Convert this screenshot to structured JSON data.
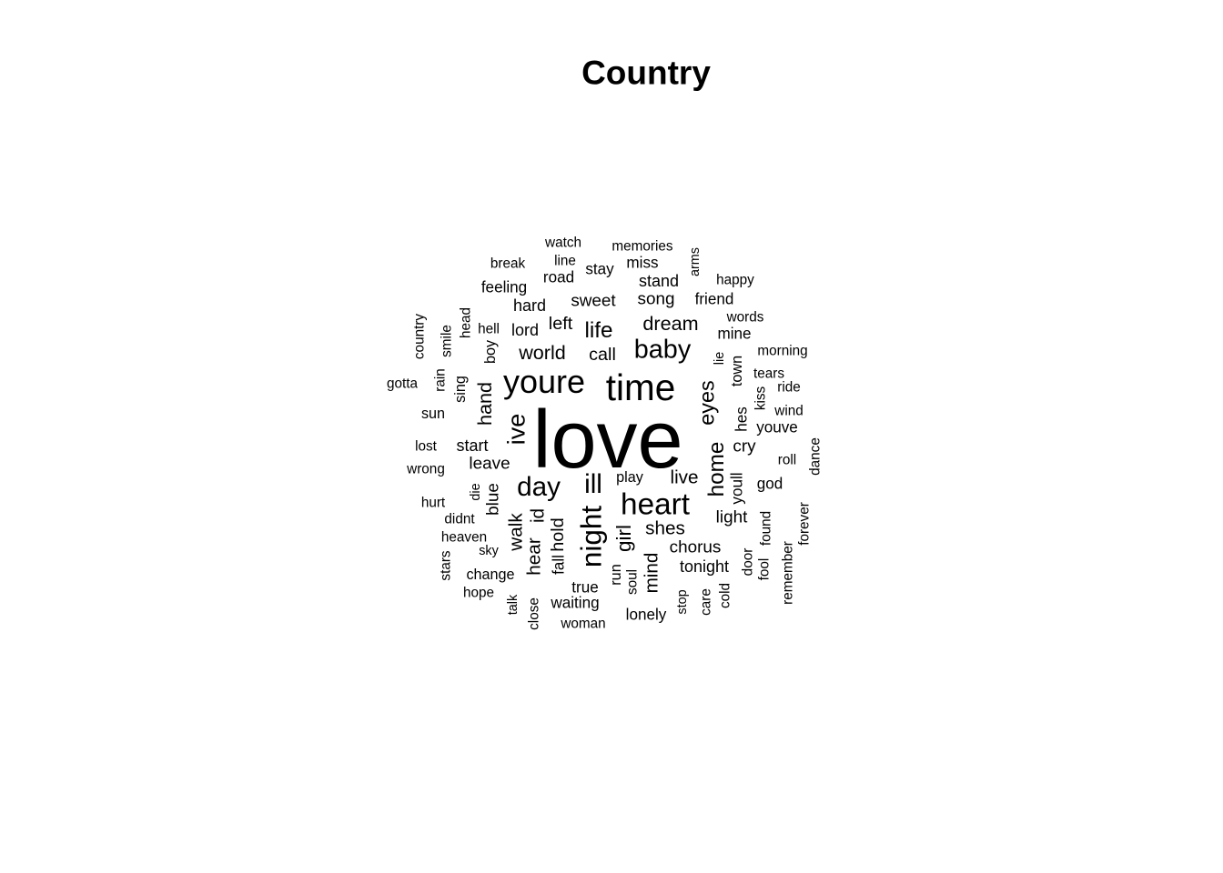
{
  "title": "Country",
  "words": [
    {
      "text": "love",
      "weight": 100
    },
    {
      "text": "time",
      "weight": 45
    },
    {
      "text": "youre",
      "weight": 40
    },
    {
      "text": "heart",
      "weight": 37
    },
    {
      "text": "night",
      "weight": 35
    },
    {
      "text": "day",
      "weight": 33
    },
    {
      "text": "ill",
      "weight": 33
    },
    {
      "text": "ive",
      "weight": 30
    },
    {
      "text": "baby",
      "weight": 32
    },
    {
      "text": "home",
      "weight": 27
    },
    {
      "text": "eyes",
      "weight": 26
    },
    {
      "text": "life",
      "weight": 27
    },
    {
      "text": "girl",
      "weight": 25
    },
    {
      "text": "world",
      "weight": 24
    },
    {
      "text": "dream",
      "weight": 24
    },
    {
      "text": "hand",
      "weight": 24
    },
    {
      "text": "live",
      "weight": 23
    },
    {
      "text": "shes",
      "weight": 23
    },
    {
      "text": "walk",
      "weight": 23
    },
    {
      "text": "mind",
      "weight": 23
    },
    {
      "text": "hear",
      "weight": 23
    },
    {
      "text": "id",
      "weight": 23
    },
    {
      "text": "hold",
      "weight": 22
    },
    {
      "text": "call",
      "weight": 22
    },
    {
      "text": "left",
      "weight": 22
    },
    {
      "text": "chorus",
      "weight": 21
    },
    {
      "text": "sweet",
      "weight": 21
    },
    {
      "text": "song",
      "weight": 21
    },
    {
      "text": "leave",
      "weight": 21
    },
    {
      "text": "cry",
      "weight": 21
    },
    {
      "text": "blue",
      "weight": 21
    },
    {
      "text": "light",
      "weight": 21
    },
    {
      "text": "tonight",
      "weight": 20
    },
    {
      "text": "start",
      "weight": 20
    },
    {
      "text": "stand",
      "weight": 20
    },
    {
      "text": "lord",
      "weight": 20
    },
    {
      "text": "hard",
      "weight": 20
    },
    {
      "text": "road",
      "weight": 19
    },
    {
      "text": "feeling",
      "weight": 19
    },
    {
      "text": "friend",
      "weight": 19
    },
    {
      "text": "fall",
      "weight": 19
    },
    {
      "text": "true",
      "weight": 19
    },
    {
      "text": "youll",
      "weight": 19
    },
    {
      "text": "waiting",
      "weight": 19
    },
    {
      "text": "lonely",
      "weight": 19
    },
    {
      "text": "mine",
      "weight": 19
    },
    {
      "text": "stay",
      "weight": 19
    },
    {
      "text": "miss",
      "weight": 19
    },
    {
      "text": "god",
      "weight": 19
    },
    {
      "text": "youve",
      "weight": 19
    },
    {
      "text": "hes",
      "weight": 19
    },
    {
      "text": "town",
      "weight": 18
    },
    {
      "text": "sing",
      "weight": 18
    },
    {
      "text": "boy",
      "weight": 18
    },
    {
      "text": "play",
      "weight": 18
    },
    {
      "text": "run",
      "weight": 18
    },
    {
      "text": "sun",
      "weight": 18
    },
    {
      "text": "change",
      "weight": 18
    },
    {
      "text": "memories",
      "weight": 17
    },
    {
      "text": "watch",
      "weight": 17
    },
    {
      "text": "line",
      "weight": 17
    },
    {
      "text": "break",
      "weight": 17
    },
    {
      "text": "happy",
      "weight": 17
    },
    {
      "text": "words",
      "weight": 17
    },
    {
      "text": "morning",
      "weight": 17
    },
    {
      "text": "tears",
      "weight": 17
    },
    {
      "text": "ride",
      "weight": 17
    },
    {
      "text": "wind",
      "weight": 17
    },
    {
      "text": "kiss",
      "weight": 17
    },
    {
      "text": "roll",
      "weight": 17
    },
    {
      "text": "dance",
      "weight": 17
    },
    {
      "text": "door",
      "weight": 17
    },
    {
      "text": "fool",
      "weight": 17
    },
    {
      "text": "found",
      "weight": 17
    },
    {
      "text": "forever",
      "weight": 17
    },
    {
      "text": "remember",
      "weight": 17
    },
    {
      "text": "care",
      "weight": 17
    },
    {
      "text": "cold",
      "weight": 17
    },
    {
      "text": "stop",
      "weight": 16
    },
    {
      "text": "soul",
      "weight": 17
    },
    {
      "text": "woman",
      "weight": 17
    },
    {
      "text": "close",
      "weight": 17
    },
    {
      "text": "talk",
      "weight": 16
    },
    {
      "text": "hope",
      "weight": 17
    },
    {
      "text": "sky",
      "weight": 16
    },
    {
      "text": "stars",
      "weight": 17
    },
    {
      "text": "heaven",
      "weight": 17
    },
    {
      "text": "didnt",
      "weight": 17
    },
    {
      "text": "hurt",
      "weight": 17
    },
    {
      "text": "die",
      "weight": 16
    },
    {
      "text": "wrong",
      "weight": 17
    },
    {
      "text": "lost",
      "weight": 17
    },
    {
      "text": "gotta",
      "weight": 17
    },
    {
      "text": "rain",
      "weight": 17
    },
    {
      "text": "smile",
      "weight": 17
    },
    {
      "text": "country",
      "weight": 17
    },
    {
      "text": "head",
      "weight": 17
    },
    {
      "text": "hell",
      "weight": 17
    },
    {
      "text": "arms",
      "weight": 16
    },
    {
      "text": "lie",
      "weight": 16
    }
  ]
}
